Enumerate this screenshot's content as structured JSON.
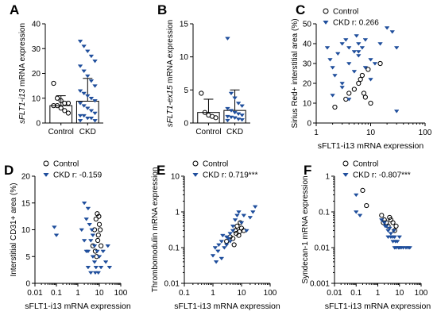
{
  "colors": {
    "control": "#000000",
    "ckd": "#1f4e9c",
    "axis": "#000000"
  },
  "chart_data": [
    {
      "panel": "A",
      "type": "bar",
      "ylabel_italic_part": "sFLT1-i13",
      "ylabel_rest": " mRNA expression",
      "categories": [
        "Control",
        "CKD"
      ],
      "ylim": [
        0,
        40
      ],
      "yticks": [
        "0",
        "10",
        "20",
        "30",
        "40"
      ],
      "series": [
        {
          "name": "Control",
          "mean": 7,
          "sd_upper": 11,
          "points": [
            16,
            10,
            9,
            8,
            8,
            7,
            7,
            6,
            5,
            4
          ]
        },
        {
          "name": "CKD",
          "mean": 8.8,
          "sd_upper": 18,
          "points": [
            33,
            31,
            29,
            27,
            25,
            23,
            21,
            19,
            17,
            15,
            13,
            12,
            11,
            10,
            9,
            8,
            7,
            6,
            5,
            4,
            3,
            3,
            2,
            2,
            1,
            1
          ]
        }
      ]
    },
    {
      "panel": "B",
      "type": "bar",
      "ylabel_italic_part": "sFLT1-ex15",
      "ylabel_rest": " mRNA expression",
      "categories": [
        "Control",
        "CKD"
      ],
      "ylim": [
        0,
        15
      ],
      "yticks": [
        "0",
        "5",
        "10",
        "15"
      ],
      "series": [
        {
          "name": "Control",
          "mean": 1.6,
          "sd_upper": 3.6,
          "points": [
            4.5,
            1.6,
            1.2,
            1.0,
            0.8
          ]
        },
        {
          "name": "CKD",
          "mean": 1.9,
          "sd_upper": 5,
          "points": [
            12.8,
            4.5,
            3.8,
            3.0,
            2.6,
            2.2,
            1.9,
            1.6,
            1.4,
            1.2,
            1.0,
            0.9,
            0.8,
            0.6,
            0.5,
            0.4
          ]
        }
      ]
    },
    {
      "panel": "C",
      "type": "scatter",
      "xscale": "log",
      "xlim": [
        1,
        100
      ],
      "xticks": [
        "1",
        "10",
        "100"
      ],
      "xlabel": "sFLT1-i13 mRNA expression",
      "ylabel": "Sirius Red+ interstitial area (%)",
      "ylim": [
        0,
        50
      ],
      "yticks": [
        "0",
        "10",
        "20",
        "30",
        "40",
        "50"
      ],
      "legend": [
        {
          "name": "Control",
          "text": "Control"
        },
        {
          "name": "CKD",
          "text": "CKD r: 0.266"
        }
      ],
      "series": [
        {
          "name": "Control",
          "x": [
            2.2,
            3.5,
            4,
            5,
            6,
            6.5,
            7,
            7.5,
            8,
            9,
            10,
            15
          ],
          "y": [
            8,
            12,
            15,
            17,
            20,
            22,
            24,
            15,
            13,
            27,
            10,
            30
          ]
        },
        {
          "name": "CKD",
          "x": [
            1.6,
            1.8,
            2,
            2.2,
            2.5,
            3,
            3,
            3.5,
            4,
            4,
            5,
            5,
            5.5,
            6,
            6,
            7,
            8,
            8,
            10,
            10,
            12,
            15,
            20,
            25,
            30,
            2,
            3,
            4,
            6,
            30
          ],
          "y": [
            38,
            32,
            28,
            24,
            35,
            40,
            20,
            42,
            30,
            38,
            36,
            26,
            44,
            40,
            34,
            38,
            28,
            42,
            22,
            32,
            30,
            40,
            48,
            46,
            38,
            14,
            18,
            12,
            36,
            6
          ]
        }
      ]
    },
    {
      "panel": "D",
      "type": "scatter",
      "xscale": "log",
      "xlim": [
        0.01,
        100
      ],
      "xticks": [
        "0.01",
        "0.1",
        "1",
        "10",
        "100"
      ],
      "xlabel": "sFLT1-i13 mRNA expression",
      "ylabel": "Interstitial CD31+ area (%)",
      "ylim": [
        0,
        20
      ],
      "yticks": [
        "0",
        "5",
        "10",
        "15",
        "20"
      ],
      "legend": [
        {
          "name": "Control",
          "text": "Control"
        },
        {
          "name": "CKD",
          "text": "CKD r: -0.159"
        }
      ],
      "series": [
        {
          "name": "Control",
          "x": [
            5,
            6,
            7,
            8,
            9,
            10,
            6.5,
            8.5,
            11,
            12,
            7.5,
            9.5
          ],
          "y": [
            7,
            10,
            12,
            13,
            9,
            11,
            6,
            8,
            10,
            7,
            5,
            12.5
          ]
        },
        {
          "name": "CKD",
          "x": [
            0.08,
            0.1,
            1.5,
            2,
            2,
            2.5,
            3,
            3,
            3.5,
            4,
            4,
            5,
            5,
            6,
            6,
            7,
            8,
            9,
            10,
            12,
            15,
            20,
            25,
            30,
            3,
            2.5,
            4.5,
            6.5
          ],
          "y": [
            10.5,
            9,
            10,
            15,
            8,
            12,
            6,
            3,
            11,
            8,
            2,
            5,
            9,
            4,
            7,
            3,
            6,
            2,
            5,
            3,
            6,
            4,
            7,
            3,
            14,
            6,
            10,
            2
          ]
        }
      ]
    },
    {
      "panel": "E",
      "type": "scatter",
      "xscale": "log",
      "yscale": "log",
      "xlim": [
        0.1,
        100
      ],
      "xticks": [
        "0.1",
        "1",
        "10",
        "100"
      ],
      "xlabel": "sFLT1-i13 mRNA expression",
      "ylabel": "Thrombomodulin mRNA expression",
      "ylim": [
        0.01,
        10
      ],
      "yticks": [
        "0.01",
        "0.1",
        "1",
        "10"
      ],
      "legend": [
        {
          "name": "Control",
          "text": "Control"
        },
        {
          "name": "CKD",
          "text": "CKD r: 0.719***"
        }
      ],
      "series": [
        {
          "name": "Control",
          "x": [
            3,
            4,
            5,
            6,
            6.5,
            7,
            8,
            9,
            10,
            12,
            5.5,
            8.5
          ],
          "y": [
            0.15,
            0.2,
            0.18,
            0.3,
            0.25,
            0.4,
            0.22,
            0.5,
            0.35,
            0.3,
            0.12,
            0.28
          ]
        },
        {
          "name": "CKD",
          "x": [
            1,
            1.2,
            1.5,
            1.6,
            2,
            2,
            2.5,
            3,
            3,
            3.5,
            4,
            4,
            5,
            5,
            6,
            7,
            8,
            10,
            12,
            15,
            20,
            25,
            30,
            1.3,
            2.2
          ],
          "y": [
            0.06,
            0.1,
            0.08,
            0.12,
            0.05,
            0.15,
            0.1,
            0.2,
            0.12,
            0.18,
            0.25,
            0.15,
            0.4,
            0.3,
            0.6,
            0.8,
            1,
            0.5,
            0.8,
            0.3,
            0.7,
            1,
            1.4,
            0.04,
            0.22
          ]
        }
      ]
    },
    {
      "panel": "F",
      "type": "scatter",
      "xscale": "log",
      "yscale": "log",
      "xlim": [
        0.01,
        100
      ],
      "xticks": [
        "0.01",
        "0.1",
        "1",
        "10",
        "100"
      ],
      "xlabel": "sFLT1-i13 mRNA expression",
      "ylabel": "Syndecan-1 mRNA expression",
      "ylim": [
        0.001,
        1
      ],
      "yticks": [
        "0.001",
        "0.01",
        "0.1",
        "1"
      ],
      "legend": [
        {
          "name": "Control",
          "text": "Control"
        },
        {
          "name": "CKD",
          "text": "CKD r: -0.807***"
        }
      ],
      "series": [
        {
          "name": "Control",
          "x": [
            0.2,
            0.3,
            1.5,
            2,
            2.5,
            3,
            4,
            5,
            6,
            7,
            1.8,
            3.5
          ],
          "y": [
            0.4,
            0.15,
            0.08,
            0.06,
            0.05,
            0.04,
            0.06,
            0.05,
            0.03,
            0.04,
            0.05,
            0.07
          ]
        },
        {
          "name": "CKD",
          "x": [
            0.1,
            0.1,
            0.15,
            1.5,
            2,
            2.5,
            3,
            3,
            4,
            4,
            5,
            5,
            6,
            6,
            7,
            8,
            9,
            10,
            10,
            12,
            15,
            20,
            25,
            30,
            2.2,
            3.5,
            5.5,
            6.5
          ],
          "y": [
            0.3,
            0.1,
            0.08,
            0.06,
            0.05,
            0.04,
            0.03,
            0.02,
            0.025,
            0.02,
            0.015,
            0.02,
            0.01,
            0.02,
            0.01,
            0.015,
            0.01,
            0.02,
            0.01,
            0.01,
            0.01,
            0.01,
            0.01,
            0.01,
            0.04,
            0.035,
            0.03,
            0.015
          ]
        }
      ]
    }
  ]
}
